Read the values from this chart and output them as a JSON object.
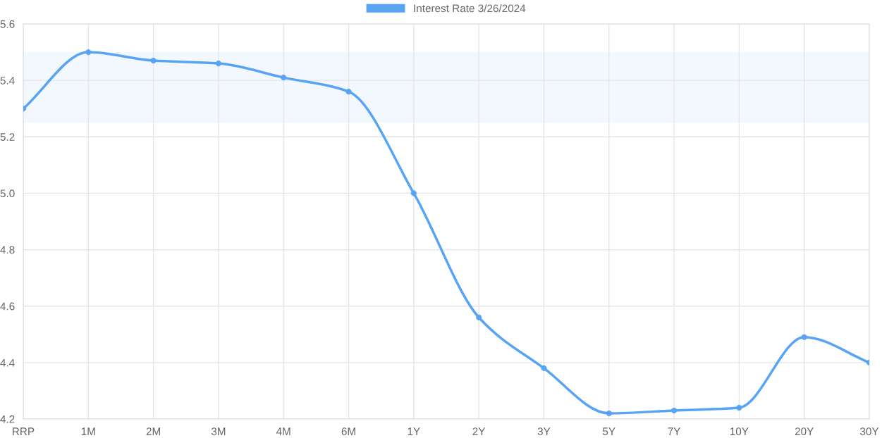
{
  "chart_data": {
    "type": "line",
    "categories": [
      "RRP",
      "1M",
      "2M",
      "3M",
      "4M",
      "6M",
      "1Y",
      "2Y",
      "3Y",
      "5Y",
      "7Y",
      "10Y",
      "20Y",
      "30Y"
    ],
    "series": [
      {
        "name": "Interest Rate 3/26/2024",
        "color": "#58a4f4",
        "values": [
          5.3,
          5.5,
          5.47,
          5.46,
          5.41,
          5.36,
          5.0,
          4.56,
          4.38,
          4.22,
          4.23,
          4.24,
          4.49,
          4.4
        ]
      }
    ],
    "ylim": [
      4.2,
      5.6
    ],
    "yticks": [
      4.2,
      4.4,
      4.6,
      4.8,
      {
        "value": 5,
        "label": "5.0"
      },
      5.2,
      5.4,
      5.6
    ],
    "bands": [
      {
        "axis": "y",
        "from": 5.25,
        "to": 5.5,
        "color": "#f3f8fe"
      }
    ],
    "grid": true,
    "legend": "top",
    "marker": "circle",
    "line_style": "solid"
  }
}
